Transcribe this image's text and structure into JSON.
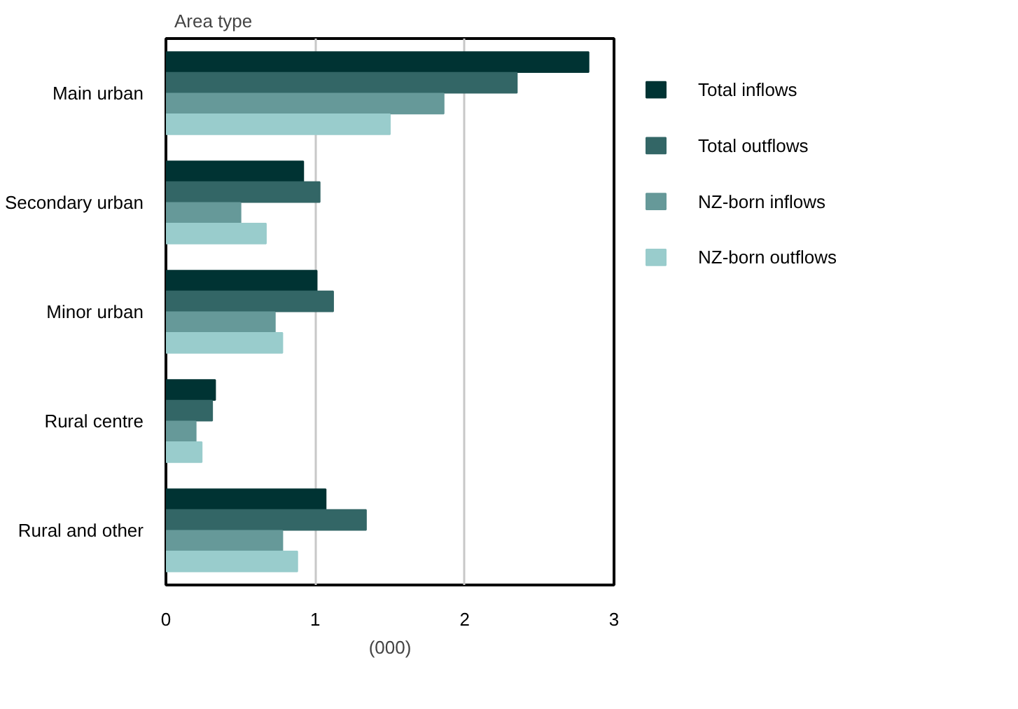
{
  "chart_data": {
    "type": "bar",
    "orientation": "horizontal",
    "title": "Area type",
    "xlabel": "(000)",
    "categories": [
      "Main urban",
      "Secondary urban",
      "Minor urban",
      "Rural centre",
      "Rural and other"
    ],
    "series": [
      {
        "name": "Total inflows",
        "color": "#003333",
        "values": [
          2.83,
          0.92,
          1.01,
          0.33,
          1.07
        ]
      },
      {
        "name": "Total outflows",
        "color": "#336666",
        "values": [
          2.35,
          1.03,
          1.12,
          0.31,
          1.34
        ]
      },
      {
        "name": "NZ-born inflows",
        "color": "#669999",
        "values": [
          1.86,
          0.5,
          0.73,
          0.2,
          0.78
        ]
      },
      {
        "name": "NZ-born outflows",
        "color": "#99cccc",
        "values": [
          1.5,
          0.67,
          0.78,
          0.24,
          0.88
        ]
      }
    ],
    "xlim": [
      0,
      3
    ],
    "xticks": [
      0,
      1,
      2,
      3
    ],
    "grid": "x",
    "legend": "right"
  }
}
